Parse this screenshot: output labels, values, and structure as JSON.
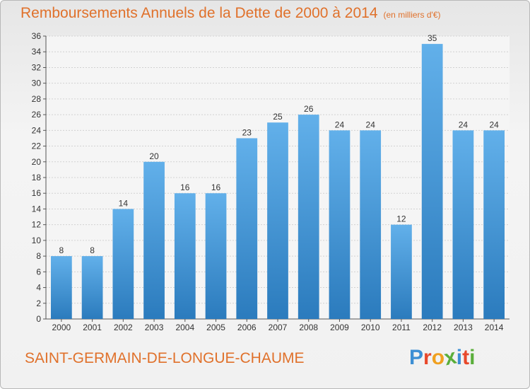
{
  "page": {
    "title": "Remboursements Annuels de la Dette de 2000 à 2014",
    "unit": "(en milliers d'€)",
    "commune": "SAINT-GERMAIN-DE-LONGUE-CHAUME",
    "logo_letters": [
      "P",
      "r",
      "o",
      "x",
      "i",
      "t",
      "i"
    ],
    "logo_colors": [
      "#3d8fd4",
      "#e8482b",
      "#f0a020",
      "#5aae3a",
      "#3d8fd4",
      "#e8482b",
      "#5aae3a"
    ],
    "title_color": "#e0712b"
  },
  "chart_data": {
    "type": "bar",
    "title": "Remboursements Annuels de la Dette de 2000 à 2014",
    "ylabel": "(en milliers d'€)",
    "xlabel": "",
    "categories": [
      "2000",
      "2001",
      "2002",
      "2003",
      "2004",
      "2005",
      "2006",
      "2007",
      "2008",
      "2009",
      "2010",
      "2011",
      "2012",
      "2013",
      "2014"
    ],
    "values": [
      8,
      8,
      14,
      20,
      16,
      16,
      23,
      25,
      26,
      24,
      24,
      12,
      35,
      24,
      24
    ],
    "ylim": [
      0,
      36
    ],
    "yticks": [
      0,
      2,
      4,
      6,
      8,
      10,
      12,
      14,
      16,
      18,
      20,
      22,
      24,
      26,
      28,
      30,
      32,
      34,
      36
    ],
    "grid": true,
    "legend": "none",
    "bar_color_top": "#62b0ea",
    "bar_color_bottom": "#2b7bbd"
  }
}
